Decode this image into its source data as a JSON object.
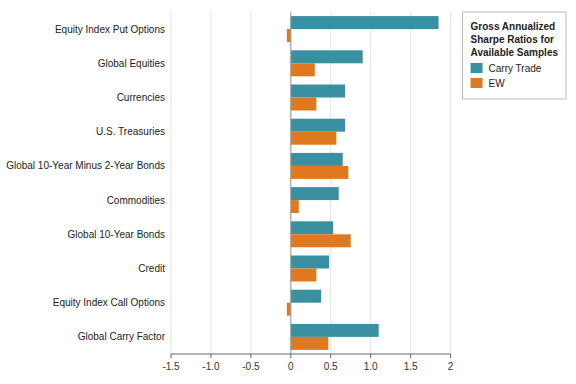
{
  "chart_data": {
    "type": "bar",
    "orientation": "horizontal",
    "categories": [
      "Equity Index Put Options",
      "Global Equities",
      "Currencies",
      "U.S. Treasuries",
      "Global 10-Year Minus 2-Year Bonds",
      "Commodities",
      "Global 10-Year Bonds",
      "Credit",
      "Equity Index Call Options",
      "Global Carry Factor"
    ],
    "series": [
      {
        "name": "Carry Trade",
        "color": "#3a8fa0",
        "values": [
          1.85,
          0.9,
          0.68,
          0.68,
          0.65,
          0.6,
          0.53,
          0.48,
          0.38,
          1.1
        ]
      },
      {
        "name": "EW",
        "color": "#e07820",
        "values": [
          -0.05,
          0.3,
          0.32,
          0.57,
          0.72,
          0.1,
          0.75,
          0.32,
          -0.05,
          0.47
        ]
      }
    ],
    "legend_title": "Gross Annualized\nSharpe Ratios for\nAvailable Samples",
    "xlim": [
      -1.5,
      2.0
    ],
    "xticks": [
      -1.5,
      {
        "value": -1.0,
        "label": "-1.0"
      },
      -0.5,
      0,
      0.5,
      {
        "value": 1.0,
        "label": "1.0"
      },
      1.5,
      2
    ],
    "grid": true,
    "legend": "upper right"
  }
}
